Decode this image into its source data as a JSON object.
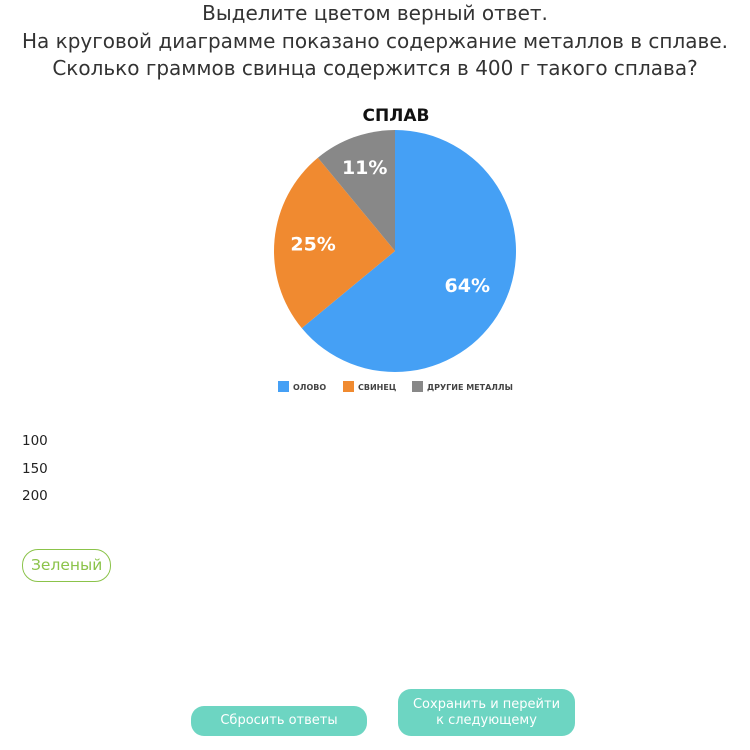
{
  "question": {
    "line1": "Выделите цветом верный ответ.",
    "line2": "На круговой диаграмме показано содержание металлов в сплаве.",
    "line3": "Сколько граммов свинца содержится в 400 г такого сплава?"
  },
  "chart_data": {
    "type": "pie",
    "title": "СПЛАВ",
    "slices": [
      {
        "label": "ОЛОВО",
        "value": 64,
        "display": "64%",
        "color": "#45a0f5"
      },
      {
        "label": "СВИНЕЦ",
        "value": 25,
        "display": "25%",
        "color": "#f08a30"
      },
      {
        "label": "ДРУГИЕ МЕТАЛЛЫ",
        "value": 11,
        "display": "11%",
        "color": "#888888"
      }
    ],
    "legend_position": "bottom"
  },
  "options": [
    "100",
    "150",
    "200"
  ],
  "color_chip": {
    "label": "Зеленый",
    "color": "#8bc34a"
  },
  "buttons": {
    "reset_label": "Сбросить ответы",
    "save_label": "Сохранить и перейти к следующему",
    "color": "#6dd5c2"
  }
}
